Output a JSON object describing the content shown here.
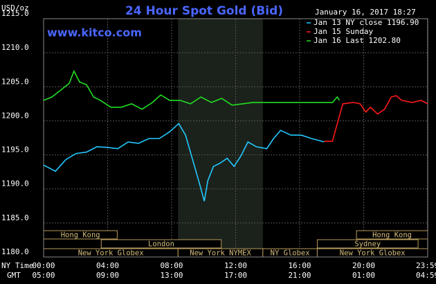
{
  "chart_data": {
    "type": "line",
    "title": "24 Hour Spot Gold (Bid)",
    "website": "www.kitco.com",
    "timestamp": "January 16, 2017 18:27",
    "y_unit": "USD/oz",
    "x_label": "NY Time",
    "x2_label": "GMT",
    "xlim": [
      0,
      24
    ],
    "xticks": [
      {
        "value": 0,
        "label": "00:00"
      },
      {
        "value": 4,
        "label": "04:00"
      },
      {
        "value": 8,
        "label": "08:00"
      },
      {
        "value": 12,
        "label": "12:00"
      },
      {
        "value": 16,
        "label": "16:00"
      },
      {
        "value": 20,
        "label": "20:00"
      },
      {
        "value": 23.98,
        "label": "23:59"
      }
    ],
    "x2tick_labels": [
      "05:00",
      "09:00",
      "13:00",
      "17:00",
      "21:00",
      "01:00",
      "04:59"
    ],
    "ylim": [
      1180,
      1215
    ],
    "yticks": [
      {
        "value": 1180,
        "label": "1180.0"
      },
      {
        "value": 1185,
        "label": "1185.0"
      },
      {
        "value": 1190,
        "label": "1190.0"
      },
      {
        "value": 1195,
        "label": "1195.0"
      },
      {
        "value": 1200,
        "label": "1200.0"
      },
      {
        "value": 1205,
        "label": "1205.0"
      },
      {
        "value": 1210,
        "label": "1210.0"
      },
      {
        "value": 1215,
        "label": "1215.0"
      }
    ],
    "grid": true,
    "legend": "top-right",
    "series": [
      {
        "name": "Jan 13 NY close 1196.90",
        "color": "#22c8ff",
        "x": [
          0,
          0.74,
          1.39,
          2.03,
          2.68,
          3.33,
          3.98,
          4.63,
          5.28,
          5.93,
          6.58,
          7.23,
          7.88,
          8.44,
          8.87,
          9.31,
          9.74,
          10.04,
          10.26,
          10.61,
          11.04,
          11.47,
          11.9,
          12.34,
          12.77,
          13.29,
          13.94,
          14.37,
          14.81,
          15.45,
          16.1,
          16.75,
          17.53
        ],
        "values": [
          1193.5,
          1192.6,
          1194.3,
          1195.2,
          1195.4,
          1196.2,
          1196.1,
          1195.9,
          1196.9,
          1196.7,
          1197.4,
          1197.4,
          1198.4,
          1199.6,
          1197.9,
          1194.3,
          1190.8,
          1188.2,
          1191.2,
          1193.3,
          1193.8,
          1194.5,
          1193.3,
          1194.9,
          1196.9,
          1196.2,
          1195.9,
          1197.4,
          1198.6,
          1197.9,
          1197.9,
          1197.4,
          1196.9
        ]
      },
      {
        "name": "Jan 15 Sunday",
        "color": "#ff1a1a",
        "x": [
          17.53,
          18.05,
          18.27,
          18.7,
          19.35,
          19.78,
          20.13,
          20.43,
          20.87,
          21.3,
          21.73,
          22.03,
          22.38,
          23.03,
          23.59,
          24
        ],
        "values": [
          1197.0,
          1197.0,
          1198.9,
          1202.5,
          1202.7,
          1202.5,
          1201.3,
          1202.0,
          1201.0,
          1201.7,
          1203.5,
          1203.7,
          1203.0,
          1202.7,
          1203.0,
          1202.5
        ]
      },
      {
        "name": "Jan 16 Last 1202.80",
        "color": "#22e022",
        "x": [
          0,
          0.52,
          1.17,
          1.6,
          1.9,
          2.25,
          2.68,
          3.12,
          3.55,
          4.2,
          4.85,
          5.5,
          6.15,
          6.8,
          7.32,
          7.88,
          8.53,
          9.18,
          9.83,
          10.48,
          11.13,
          11.77,
          12.42,
          13.07,
          18.05,
          18.35,
          18.48
        ],
        "values": [
          1203.0,
          1203.5,
          1204.7,
          1205.5,
          1207.3,
          1205.7,
          1205.3,
          1203.5,
          1203.0,
          1202.0,
          1202.0,
          1202.5,
          1201.7,
          1202.7,
          1203.8,
          1203.0,
          1203.0,
          1202.5,
          1203.5,
          1202.7,
          1203.3,
          1202.3,
          1202.5,
          1202.7,
          1202.7,
          1203.5,
          1203.0
        ]
      }
    ],
    "sessions": [
      [
        {
          "label": "Hong Kong",
          "start": 0,
          "end": 4.6
        },
        {
          "label": "Hong Kong",
          "start": 19.55,
          "end": 24
        }
      ],
      [
        {
          "label": "London",
          "start": 3.6,
          "end": 11.1
        },
        {
          "label": "Sydney",
          "start": 17.1,
          "end": 23.4
        }
      ],
      [
        {
          "label": "New York Globex",
          "start": 0,
          "end": 8.4
        },
        {
          "label": "New York NYMEX",
          "start": 8.4,
          "end": 13.7
        },
        {
          "label": "NY Globex",
          "start": 13.7,
          "end": 17.1
        },
        {
          "label": "New York Globex",
          "start": 17.1,
          "end": 24
        }
      ]
    ]
  }
}
